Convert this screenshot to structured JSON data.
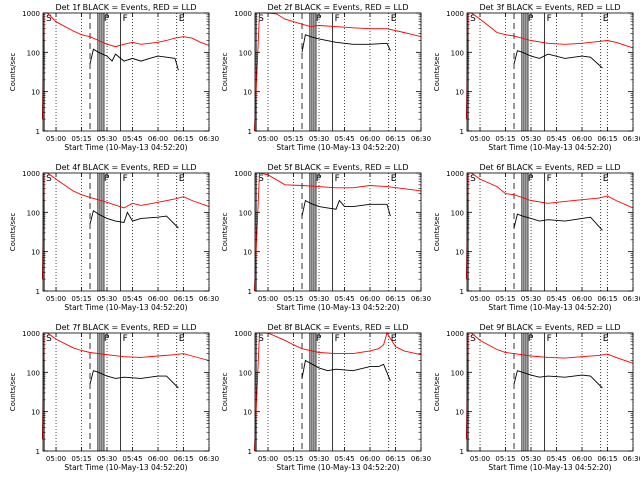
{
  "figure": {
    "ylabel": "Counts/sec",
    "xlabel": "Start Time (10-May-13 04:52:20)"
  },
  "chart_data": [
    {
      "type": "line",
      "title": "Det 1f BLACK = Events, RED = LLD",
      "xlabel": "Start Time (10-May-13 04:52:20)",
      "ylabel": "Counts/sec",
      "yscale": "log",
      "ylim": [
        1,
        1000
      ],
      "xlim": [
        "04:52:20",
        "06:30"
      ],
      "x_ticks": [
        "05:00",
        "05:15",
        "05:30",
        "05:45",
        "06:00",
        "06:15",
        "06:30"
      ],
      "y_ticks": [
        "1",
        "10",
        "100",
        "1000"
      ],
      "markers": [
        {
          "label": "S",
          "time": "04:53"
        },
        {
          "label": "P",
          "time": "05:27"
        },
        {
          "label": "F",
          "time": "05:38"
        },
        {
          "label": "E",
          "time": "06:11"
        }
      ],
      "series": [
        {
          "name": "RED",
          "color": "#ff0000",
          "x": [
            "04:52",
            "04:53",
            "04:55",
            "05:00",
            "05:10",
            "05:15",
            "05:20",
            "05:25",
            "05:30",
            "05:35",
            "05:40",
            "05:45",
            "05:50",
            "05:55",
            "06:00",
            "06:05",
            "06:10",
            "06:15",
            "06:20",
            "06:25",
            "06:30"
          ],
          "y": [
            2,
            1000,
            1000,
            600,
            350,
            280,
            250,
            200,
            160,
            140,
            160,
            180,
            160,
            170,
            180,
            200,
            230,
            250,
            230,
            180,
            150
          ]
        },
        {
          "name": "BLACK",
          "color": "#000000",
          "x": [
            "05:20",
            "05:22",
            "05:25",
            "05:30",
            "05:33",
            "05:35",
            "05:40",
            "05:45",
            "05:50",
            "05:55",
            "06:00",
            "06:05",
            "06:10",
            "06:12"
          ],
          "y": [
            50,
            120,
            100,
            80,
            60,
            90,
            60,
            70,
            60,
            70,
            80,
            75,
            70,
            35
          ]
        }
      ]
    },
    {
      "type": "line",
      "title": "Det 2f BLACK = Events, RED = LLD",
      "xlabel": "Start Time (10-May-13 04:52:20)",
      "ylabel": "Counts/sec",
      "yscale": "log",
      "ylim": [
        1,
        1000
      ],
      "xlim": [
        "04:52:20",
        "06:30"
      ],
      "x_ticks": [
        "05:00",
        "05:15",
        "05:30",
        "05:45",
        "06:00",
        "06:15",
        "06:30"
      ],
      "y_ticks": [
        "1",
        "10",
        "100",
        "1000"
      ],
      "markers": [
        {
          "label": "S",
          "time": "04:53"
        },
        {
          "label": "P",
          "time": "05:27"
        },
        {
          "label": "F",
          "time": "05:38"
        },
        {
          "label": "E",
          "time": "06:11"
        }
      ],
      "series": [
        {
          "name": "RED",
          "color": "#ff0000",
          "x": [
            "04:52",
            "04:55",
            "05:00",
            "05:05",
            "05:10",
            "05:15",
            "05:20",
            "05:25",
            "05:30",
            "05:40",
            "05:50",
            "06:00",
            "06:10",
            "06:20",
            "06:30"
          ],
          "y": [
            1,
            1000,
            1000,
            950,
            700,
            600,
            520,
            450,
            480,
            450,
            420,
            400,
            400,
            320,
            250
          ]
        },
        {
          "name": "BLACK",
          "color": "#000000",
          "x": [
            "05:20",
            "05:22",
            "05:25",
            "05:30",
            "05:40",
            "05:50",
            "06:00",
            "06:10",
            "06:12"
          ],
          "y": [
            100,
            280,
            250,
            220,
            180,
            160,
            160,
            170,
            110
          ]
        }
      ]
    },
    {
      "type": "line",
      "title": "Det 3f BLACK = Events, RED = LLD",
      "xlabel": "Start Time (10-May-13 04:52:20)",
      "ylabel": "Counts/sec",
      "yscale": "log",
      "ylim": [
        1,
        1000
      ],
      "xlim": [
        "04:52:20",
        "06:30"
      ],
      "x_ticks": [
        "05:00",
        "05:15",
        "05:30",
        "05:45",
        "06:00",
        "06:15",
        "06:30"
      ],
      "y_ticks": [
        "1",
        "10",
        "100",
        "1000"
      ],
      "markers": [
        {
          "label": "S",
          "time": "04:53"
        },
        {
          "label": "P",
          "time": "05:27"
        },
        {
          "label": "F",
          "time": "05:38"
        },
        {
          "label": "E",
          "time": "06:11"
        }
      ],
      "series": [
        {
          "name": "RED",
          "color": "#ff0000",
          "x": [
            "04:52",
            "04:53",
            "04:55",
            "05:00",
            "05:10",
            "05:15",
            "05:20",
            "05:30",
            "05:40",
            "05:50",
            "06:00",
            "06:10",
            "06:15",
            "06:20",
            "06:30"
          ],
          "y": [
            2,
            1000,
            1000,
            700,
            320,
            280,
            260,
            200,
            170,
            160,
            170,
            190,
            200,
            180,
            130
          ]
        },
        {
          "name": "BLACK",
          "color": "#000000",
          "x": [
            "05:20",
            "05:22",
            "05:25",
            "05:30",
            "05:35",
            "05:40",
            "05:50",
            "06:00",
            "06:05",
            "06:12"
          ],
          "y": [
            50,
            110,
            100,
            80,
            70,
            90,
            70,
            80,
            75,
            40
          ]
        }
      ]
    },
    {
      "type": "line",
      "title": "Det 4f BLACK = Events, RED = LLD",
      "xlabel": "Start Time (10-May-13 04:52:20)",
      "ylabel": "Counts/sec",
      "yscale": "log",
      "ylim": [
        1,
        1000
      ],
      "xlim": [
        "04:52:20",
        "06:30"
      ],
      "x_ticks": [
        "05:00",
        "05:15",
        "05:30",
        "05:45",
        "06:00",
        "06:15",
        "06:30"
      ],
      "y_ticks": [
        "1",
        "10",
        "100",
        "1000"
      ],
      "markers": [
        {
          "label": "S",
          "time": "04:53"
        },
        {
          "label": "P",
          "time": "05:27"
        },
        {
          "label": "F",
          "time": "05:38"
        },
        {
          "label": "E",
          "time": "06:11"
        }
      ],
      "series": [
        {
          "name": "RED",
          "color": "#ff0000",
          "x": [
            "04:52",
            "04:53",
            "04:55",
            "05:00",
            "05:10",
            "05:15",
            "05:20",
            "05:30",
            "05:40",
            "05:45",
            "05:50",
            "06:00",
            "06:10",
            "06:15",
            "06:20",
            "06:30"
          ],
          "y": [
            2,
            1000,
            1000,
            700,
            350,
            280,
            240,
            180,
            130,
            170,
            150,
            180,
            220,
            250,
            200,
            140
          ]
        },
        {
          "name": "BLACK",
          "color": "#000000",
          "x": [
            "05:20",
            "05:22",
            "05:25",
            "05:30",
            "05:35",
            "05:40",
            "05:42",
            "05:45",
            "05:50",
            "06:00",
            "06:05",
            "06:12"
          ],
          "y": [
            50,
            110,
            90,
            70,
            60,
            55,
            100,
            60,
            70,
            75,
            80,
            40
          ]
        }
      ]
    },
    {
      "type": "line",
      "title": "Det 5f BLACK = Events, RED = LLD",
      "xlabel": "Start Time (10-May-13 04:52:20)",
      "ylabel": "Counts/sec",
      "yscale": "log",
      "ylim": [
        1,
        1000
      ],
      "xlim": [
        "04:52:20",
        "06:30"
      ],
      "x_ticks": [
        "05:00",
        "05:15",
        "05:30",
        "05:45",
        "06:00",
        "06:15",
        "06:30"
      ],
      "y_ticks": [
        "1",
        "10",
        "100",
        "1000"
      ],
      "markers": [
        {
          "label": "S",
          "time": "04:53"
        },
        {
          "label": "P",
          "time": "05:27"
        },
        {
          "label": "F",
          "time": "05:38"
        },
        {
          "label": "E",
          "time": "06:11"
        }
      ],
      "series": [
        {
          "name": "RED",
          "color": "#ff0000",
          "x": [
            "04:52",
            "04:55",
            "05:00",
            "05:10",
            "05:20",
            "05:30",
            "05:40",
            "05:50",
            "06:00",
            "06:10",
            "06:20",
            "06:30"
          ],
          "y": [
            1,
            1000,
            900,
            500,
            480,
            450,
            420,
            420,
            480,
            450,
            400,
            350
          ]
        },
        {
          "name": "BLACK",
          "color": "#000000",
          "x": [
            "05:20",
            "05:22",
            "05:25",
            "05:30",
            "05:35",
            "05:40",
            "05:42",
            "05:45",
            "05:50",
            "06:00",
            "06:10",
            "06:12"
          ],
          "y": [
            80,
            200,
            170,
            140,
            130,
            120,
            200,
            140,
            140,
            160,
            160,
            80
          ]
        }
      ]
    },
    {
      "type": "line",
      "title": "Det 6f BLACK = Events, RED = LLD",
      "xlabel": "Start Time (10-May-13 04:52:20)",
      "ylabel": "Counts/sec",
      "yscale": "log",
      "ylim": [
        1,
        1000
      ],
      "xlim": [
        "04:52:20",
        "06:30"
      ],
      "x_ticks": [
        "05:00",
        "05:15",
        "05:30",
        "05:45",
        "06:00",
        "06:15",
        "06:30"
      ],
      "y_ticks": [
        "1",
        "10",
        "100",
        "1000"
      ],
      "markers": [
        {
          "label": "S",
          "time": "04:53"
        },
        {
          "label": "P",
          "time": "05:27"
        },
        {
          "label": "F",
          "time": "05:38"
        },
        {
          "label": "E",
          "time": "06:11"
        }
      ],
      "series": [
        {
          "name": "RED",
          "color": "#ff0000",
          "x": [
            "04:52",
            "04:53",
            "04:55",
            "05:00",
            "05:10",
            "05:15",
            "05:20",
            "05:30",
            "05:40",
            "05:50",
            "06:00",
            "06:10",
            "06:15",
            "06:20",
            "06:30"
          ],
          "y": [
            2,
            1000,
            1000,
            700,
            450,
            300,
            280,
            200,
            170,
            190,
            210,
            230,
            260,
            200,
            130
          ]
        },
        {
          "name": "BLACK",
          "color": "#000000",
          "x": [
            "05:20",
            "05:22",
            "05:25",
            "05:30",
            "05:35",
            "05:40",
            "05:50",
            "06:00",
            "06:05",
            "06:12"
          ],
          "y": [
            40,
            90,
            80,
            70,
            60,
            65,
            60,
            70,
            75,
            35
          ]
        }
      ]
    },
    {
      "type": "line",
      "title": "Det 7f BLACK = Events, RED = LLD",
      "xlabel": "Start Time (10-May-13 04:52:20)",
      "ylabel": "Counts/sec",
      "yscale": "log",
      "ylim": [
        1,
        1000
      ],
      "xlim": [
        "04:52:20",
        "06:30"
      ],
      "x_ticks": [
        "05:00",
        "05:15",
        "05:30",
        "05:45",
        "06:00",
        "06:15",
        "06:30"
      ],
      "y_ticks": [
        "1",
        "10",
        "100",
        "1000"
      ],
      "markers": [
        {
          "label": "S",
          "time": "04:53"
        },
        {
          "label": "P",
          "time": "05:27"
        },
        {
          "label": "F",
          "time": "05:38"
        },
        {
          "label": "E",
          "time": "06:11"
        }
      ],
      "series": [
        {
          "name": "RED",
          "color": "#ff0000",
          "x": [
            "04:52",
            "04:53",
            "04:55",
            "05:00",
            "05:10",
            "05:15",
            "05:20",
            "05:30",
            "05:40",
            "05:50",
            "06:00",
            "06:10",
            "06:15",
            "06:20",
            "06:30"
          ],
          "y": [
            2,
            1000,
            1000,
            700,
            420,
            360,
            320,
            280,
            250,
            240,
            260,
            280,
            300,
            260,
            200
          ]
        },
        {
          "name": "BLACK",
          "color": "#000000",
          "x": [
            "05:20",
            "05:22",
            "05:25",
            "05:30",
            "05:35",
            "05:40",
            "05:50",
            "06:00",
            "06:05",
            "06:12"
          ],
          "y": [
            50,
            110,
            100,
            80,
            70,
            75,
            70,
            80,
            80,
            40
          ]
        }
      ]
    },
    {
      "type": "line",
      "title": "Det 8f BLACK = Events, RED = LLD",
      "xlabel": "Start Time (10-May-13 04:52:20)",
      "ylabel": "Counts/sec",
      "yscale": "log",
      "ylim": [
        1,
        1000
      ],
      "xlim": [
        "04:52:20",
        "06:30"
      ],
      "x_ticks": [
        "05:00",
        "05:15",
        "05:30",
        "05:45",
        "06:00",
        "06:15",
        "06:30"
      ],
      "y_ticks": [
        "1",
        "10",
        "100",
        "1000"
      ],
      "markers": [
        {
          "label": "S",
          "time": "04:53"
        },
        {
          "label": "P",
          "time": "05:27"
        },
        {
          "label": "F",
          "time": "05:38"
        },
        {
          "label": "E",
          "time": "06:11"
        }
      ],
      "series": [
        {
          "name": "RED",
          "color": "#ff0000",
          "x": [
            "04:52",
            "04:55",
            "05:00",
            "05:10",
            "05:15",
            "05:20",
            "05:30",
            "05:40",
            "05:50",
            "06:00",
            "06:05",
            "06:08",
            "06:10",
            "06:15",
            "06:20",
            "06:30"
          ],
          "y": [
            1,
            1000,
            1000,
            650,
            500,
            400,
            320,
            300,
            300,
            350,
            400,
            500,
            1000,
            450,
            350,
            280
          ]
        },
        {
          "name": "BLACK",
          "color": "#000000",
          "x": [
            "05:20",
            "05:22",
            "05:25",
            "05:30",
            "05:35",
            "05:40",
            "05:50",
            "06:00",
            "06:05",
            "06:08",
            "06:12"
          ],
          "y": [
            70,
            200,
            170,
            130,
            110,
            120,
            110,
            140,
            140,
            160,
            60
          ]
        }
      ]
    },
    {
      "type": "line",
      "title": "Det 9f BLACK = Events, RED = LLD",
      "xlabel": "Start Time (10-May-13 04:52:20)",
      "ylabel": "Counts/sec",
      "yscale": "log",
      "ylim": [
        1,
        1000
      ],
      "xlim": [
        "04:52:20",
        "06:30"
      ],
      "x_ticks": [
        "05:00",
        "05:15",
        "05:30",
        "05:45",
        "06:00",
        "06:15",
        "06:30"
      ],
      "y_ticks": [
        "1",
        "10",
        "100",
        "1000"
      ],
      "markers": [
        {
          "label": "S",
          "time": "04:53"
        },
        {
          "label": "P",
          "time": "05:27"
        },
        {
          "label": "F",
          "time": "05:38"
        },
        {
          "label": "E",
          "time": "06:11"
        }
      ],
      "series": [
        {
          "name": "RED",
          "color": "#ff0000",
          "x": [
            "04:52",
            "04:53",
            "04:55",
            "05:00",
            "05:10",
            "05:15",
            "05:20",
            "05:30",
            "05:40",
            "05:50",
            "06:00",
            "06:10",
            "06:15",
            "06:20",
            "06:30"
          ],
          "y": [
            2,
            1000,
            1000,
            650,
            380,
            320,
            300,
            260,
            240,
            230,
            250,
            270,
            290,
            240,
            170
          ]
        },
        {
          "name": "BLACK",
          "color": "#000000",
          "x": [
            "05:20",
            "05:22",
            "05:25",
            "05:30",
            "05:35",
            "05:40",
            "05:50",
            "06:00",
            "06:05",
            "06:12"
          ],
          "y": [
            50,
            110,
            100,
            85,
            75,
            80,
            75,
            85,
            80,
            40
          ]
        }
      ]
    }
  ]
}
